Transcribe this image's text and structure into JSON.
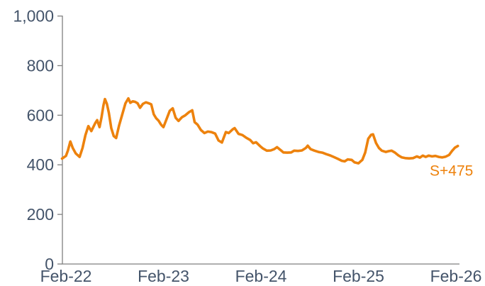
{
  "page": {
    "background": "#ffffff"
  },
  "chart_data": {
    "type": "line",
    "grid": false,
    "legend_position": "none",
    "label_color": "#44546A",
    "axis_color": "#808080",
    "x_axis": {
      "tick_labels": [
        "Feb-22",
        "Feb-23",
        "Feb-24",
        "Feb-25",
        "Feb-26"
      ],
      "tick_values": [
        0,
        1,
        2,
        3,
        4
      ],
      "range": [
        -0.05,
        4.06
      ]
    },
    "y_axis": {
      "tick_labels": [
        "1,000",
        "800",
        "600",
        "400",
        "200",
        "0"
      ],
      "tick_values": [
        1000,
        800,
        600,
        400,
        200,
        0
      ],
      "range": [
        0,
        1000
      ]
    },
    "annotation": {
      "text": "S+475",
      "color": "#ED820D",
      "anchor_value": 475
    },
    "series": [
      {
        "name": "S+475",
        "color": "#ED820D",
        "stroke_width": 3.6,
        "points": [
          [
            -0.04,
            425
          ],
          [
            0,
            436
          ],
          [
            0.02,
            458
          ],
          [
            0.045,
            494
          ],
          [
            0.07,
            468
          ],
          [
            0.1,
            446
          ],
          [
            0.14,
            432
          ],
          [
            0.17,
            468
          ],
          [
            0.2,
            520
          ],
          [
            0.23,
            556
          ],
          [
            0.26,
            536
          ],
          [
            0.3,
            568
          ],
          [
            0.32,
            580
          ],
          [
            0.345,
            552
          ],
          [
            0.365,
            592
          ],
          [
            0.385,
            640
          ],
          [
            0.4,
            665
          ],
          [
            0.42,
            645
          ],
          [
            0.44,
            610
          ],
          [
            0.465,
            548
          ],
          [
            0.49,
            516
          ],
          [
            0.515,
            508
          ],
          [
            0.545,
            558
          ],
          [
            0.575,
            600
          ],
          [
            0.61,
            648
          ],
          [
            0.64,
            668
          ],
          [
            0.66,
            650
          ],
          [
            0.685,
            656
          ],
          [
            0.71,
            654
          ],
          [
            0.735,
            648
          ],
          [
            0.76,
            630
          ],
          [
            0.79,
            646
          ],
          [
            0.82,
            652
          ],
          [
            0.85,
            648
          ],
          [
            0.875,
            644
          ],
          [
            0.9,
            604
          ],
          [
            0.925,
            588
          ],
          [
            0.95,
            578
          ],
          [
            0.975,
            562
          ],
          [
            1,
            552
          ],
          [
            1.03,
            582
          ],
          [
            1.065,
            618
          ],
          [
            1.095,
            628
          ],
          [
            1.125,
            590
          ],
          [
            1.155,
            577
          ],
          [
            1.19,
            592
          ],
          [
            1.225,
            600
          ],
          [
            1.26,
            612
          ],
          [
            1.295,
            620
          ],
          [
            1.32,
            572
          ],
          [
            1.35,
            562
          ],
          [
            1.385,
            540
          ],
          [
            1.42,
            528
          ],
          [
            1.455,
            534
          ],
          [
            1.49,
            532
          ],
          [
            1.53,
            526
          ],
          [
            1.565,
            498
          ],
          [
            1.6,
            490
          ],
          [
            1.64,
            532
          ],
          [
            1.67,
            528
          ],
          [
            1.71,
            543
          ],
          [
            1.73,
            548
          ],
          [
            1.77,
            525
          ],
          [
            1.81,
            520
          ],
          [
            1.85,
            509
          ],
          [
            1.89,
            500
          ],
          [
            1.92,
            487
          ],
          [
            1.95,
            491
          ],
          [
            1.99,
            476
          ],
          [
            2.02,
            466
          ],
          [
            2.06,
            457
          ],
          [
            2.1,
            458
          ],
          [
            2.135,
            463
          ],
          [
            2.165,
            471
          ],
          [
            2.2,
            460
          ],
          [
            2.23,
            450
          ],
          [
            2.27,
            449
          ],
          [
            2.31,
            450
          ],
          [
            2.34,
            457
          ],
          [
            2.38,
            456
          ],
          [
            2.42,
            458
          ],
          [
            2.46,
            468
          ],
          [
            2.48,
            477
          ],
          [
            2.51,
            463
          ],
          [
            2.55,
            457
          ],
          [
            2.59,
            452
          ],
          [
            2.63,
            449
          ],
          [
            2.67,
            443
          ],
          [
            2.71,
            438
          ],
          [
            2.75,
            431
          ],
          [
            2.79,
            424
          ],
          [
            2.83,
            416
          ],
          [
            2.86,
            414
          ],
          [
            2.89,
            422
          ],
          [
            2.93,
            420
          ],
          [
            2.96,
            410
          ],
          [
            3,
            406
          ],
          [
            3.04,
            420
          ],
          [
            3.07,
            450
          ],
          [
            3.1,
            505
          ],
          [
            3.13,
            521
          ],
          [
            3.15,
            523
          ],
          [
            3.18,
            488
          ],
          [
            3.21,
            468
          ],
          [
            3.24,
            457
          ],
          [
            3.28,
            452
          ],
          [
            3.31,
            455
          ],
          [
            3.34,
            457
          ],
          [
            3.375,
            449
          ],
          [
            3.41,
            438
          ],
          [
            3.445,
            430
          ],
          [
            3.48,
            427
          ],
          [
            3.52,
            426
          ],
          [
            3.56,
            427
          ],
          [
            3.6,
            434
          ],
          [
            3.63,
            429
          ],
          [
            3.66,
            437
          ],
          [
            3.69,
            432
          ],
          [
            3.72,
            437
          ],
          [
            3.755,
            434
          ],
          [
            3.79,
            436
          ],
          [
            3.825,
            432
          ],
          [
            3.86,
            430
          ],
          [
            3.895,
            433
          ],
          [
            3.93,
            440
          ],
          [
            3.96,
            456
          ],
          [
            3.99,
            469
          ],
          [
            4.02,
            476
          ]
        ]
      }
    ]
  }
}
